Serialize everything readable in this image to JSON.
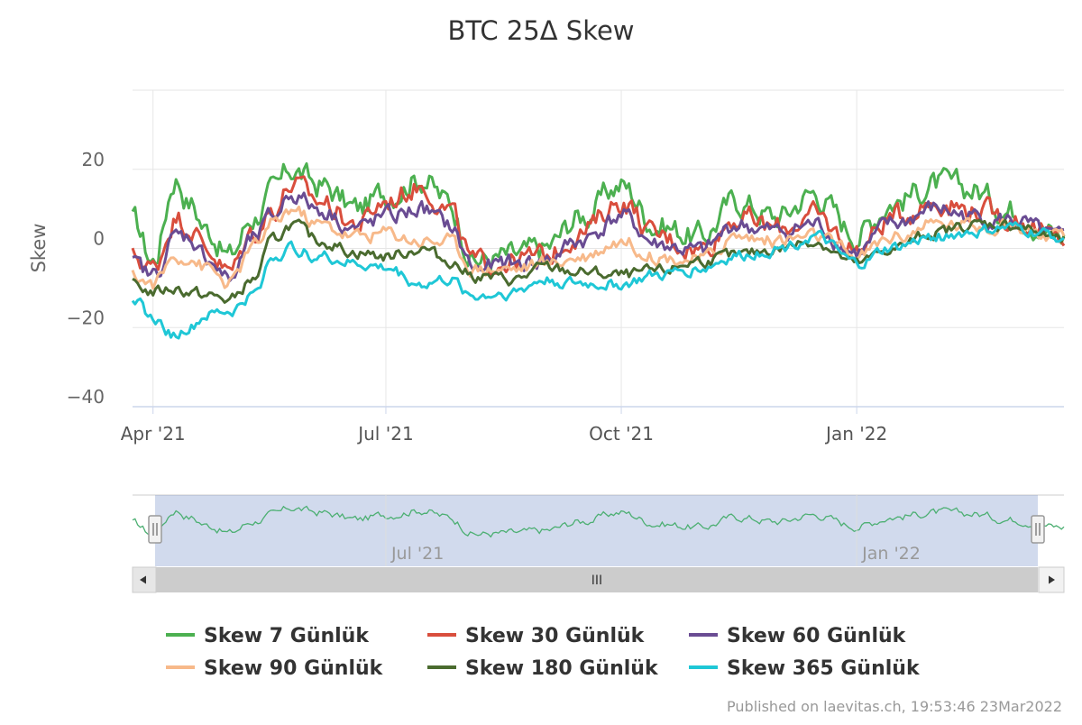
{
  "chart_data": {
    "type": "line",
    "title": "BTC 25Δ Skew",
    "xlabel": "",
    "ylabel": "Skew",
    "x_range": [
      "2021-03-24",
      "2022-03-23"
    ],
    "ylim": [
      -40,
      40
    ],
    "yticks": [
      20,
      0,
      -20,
      -40
    ],
    "ytick_labels": [
      "20",
      "0",
      "−20",
      "−40"
    ],
    "xticks": [
      {
        "date": "2021-04-01",
        "label": "Apr '21"
      },
      {
        "date": "2021-07-01",
        "label": "Jul '21"
      },
      {
        "date": "2021-10-01",
        "label": "Oct '21"
      },
      {
        "date": "2022-01-01",
        "label": "Jan '22"
      }
    ],
    "grid": true,
    "legend_position": "bottom",
    "key_dates": [
      "2021-03-24",
      "2021-04-01",
      "2021-04-10",
      "2021-04-15",
      "2021-04-22",
      "2021-05-01",
      "2021-05-10",
      "2021-05-18",
      "2021-05-25",
      "2021-06-05",
      "2021-06-20",
      "2021-07-01",
      "2021-07-15",
      "2021-07-25",
      "2021-08-05",
      "2021-08-20",
      "2021-09-01",
      "2021-09-15",
      "2021-10-01",
      "2021-10-15",
      "2021-11-01",
      "2021-11-15",
      "2021-12-01",
      "2021-12-15",
      "2022-01-01",
      "2022-01-15",
      "2022-02-01",
      "2022-02-15",
      "2022-03-01",
      "2022-03-23"
    ],
    "series": [
      {
        "name": "Skew 7 Günlük",
        "color": "#4cb050",
        "values": [
          7,
          -3,
          18,
          12,
          5,
          -2,
          8,
          14,
          20,
          16,
          10,
          14,
          18,
          12,
          -3,
          -2,
          0,
          8,
          16,
          6,
          3,
          12,
          8,
          14,
          4,
          12,
          16,
          15,
          10,
          3
        ]
      },
      {
        "name": "Skew 30 Günlük",
        "color": "#d94e3d",
        "values": [
          -2,
          -5,
          8,
          6,
          0,
          -6,
          4,
          10,
          16,
          12,
          6,
          12,
          16,
          10,
          -4,
          -3,
          -2,
          4,
          12,
          3,
          0,
          8,
          5,
          8,
          0,
          8,
          12,
          10,
          8,
          2
        ]
      },
      {
        "name": "Skew 60 Günlük",
        "color": "#6a4c93",
        "values": [
          -4,
          -7,
          3,
          3,
          -2,
          -8,
          2,
          8,
          14,
          10,
          5,
          8,
          10,
          6,
          -5,
          -4,
          -3,
          2,
          8,
          1,
          -1,
          6,
          4,
          6,
          -1,
          6,
          10,
          8,
          7,
          2
        ]
      },
      {
        "name": "Skew 90 Günlük",
        "color": "#f7b98a",
        "values": [
          -7,
          -9,
          -2,
          -2,
          -5,
          -9,
          0,
          6,
          10,
          6,
          3,
          4,
          2,
          2,
          -5,
          -5,
          -4,
          -2,
          2,
          -2,
          -3,
          3,
          2,
          3,
          -2,
          3,
          6,
          6,
          6,
          2
        ]
      },
      {
        "name": "Skew 180 Günlük",
        "color": "#4a6b2f",
        "values": [
          -9,
          -11,
          -10,
          -11,
          -12,
          -13,
          -8,
          2,
          6,
          2,
          -1,
          -2,
          0,
          -3,
          -7,
          -8,
          -5,
          -6,
          -7,
          -6,
          -3,
          -2,
          0,
          2,
          -4,
          0,
          4,
          6,
          6,
          2
        ]
      },
      {
        "name": "Skew 365 Günlük",
        "color": "#1fc7d6",
        "values": [
          -12,
          -18,
          -22,
          -20,
          -17,
          -16,
          -12,
          -2,
          0,
          -2,
          -4,
          -5,
          -9,
          -8,
          -12,
          -11,
          -8,
          -9,
          -9,
          -7,
          -5,
          -2,
          0,
          3,
          -4,
          0,
          3,
          4,
          5,
          3
        ]
      }
    ]
  },
  "navigator": {
    "labels": [
      "Jul '21",
      "Jan '22"
    ],
    "handle_glyph": "||",
    "scroll_glyph": "III"
  },
  "credit": "Published on laevitas.ch, 19:53:46 23Mar2022"
}
